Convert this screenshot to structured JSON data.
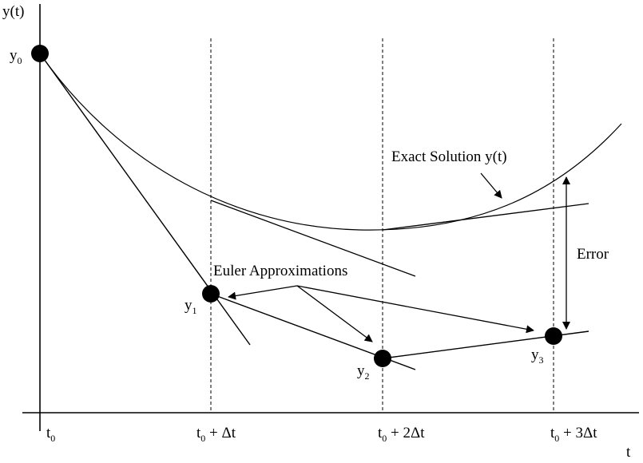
{
  "axes": {
    "y_label": "y(t)",
    "x_label": "t"
  },
  "ticks": [
    {
      "base": "t",
      "sub": "0",
      "suffix": ""
    },
    {
      "base": "t",
      "sub": "0",
      "suffix": " + Δt"
    },
    {
      "base": "t",
      "sub": "0",
      "suffix": " + 2Δt"
    },
    {
      "base": "t",
      "sub": "0",
      "suffix": " + 3Δt"
    }
  ],
  "points": [
    {
      "base": "y",
      "sub": "0"
    },
    {
      "base": "y",
      "sub": "1"
    },
    {
      "base": "y",
      "sub": "2"
    },
    {
      "base": "y",
      "sub": "3"
    }
  ],
  "annotations": {
    "exact": "Exact Solution y(t)",
    "euler": "Euler Approximations",
    "error": "Error"
  }
}
